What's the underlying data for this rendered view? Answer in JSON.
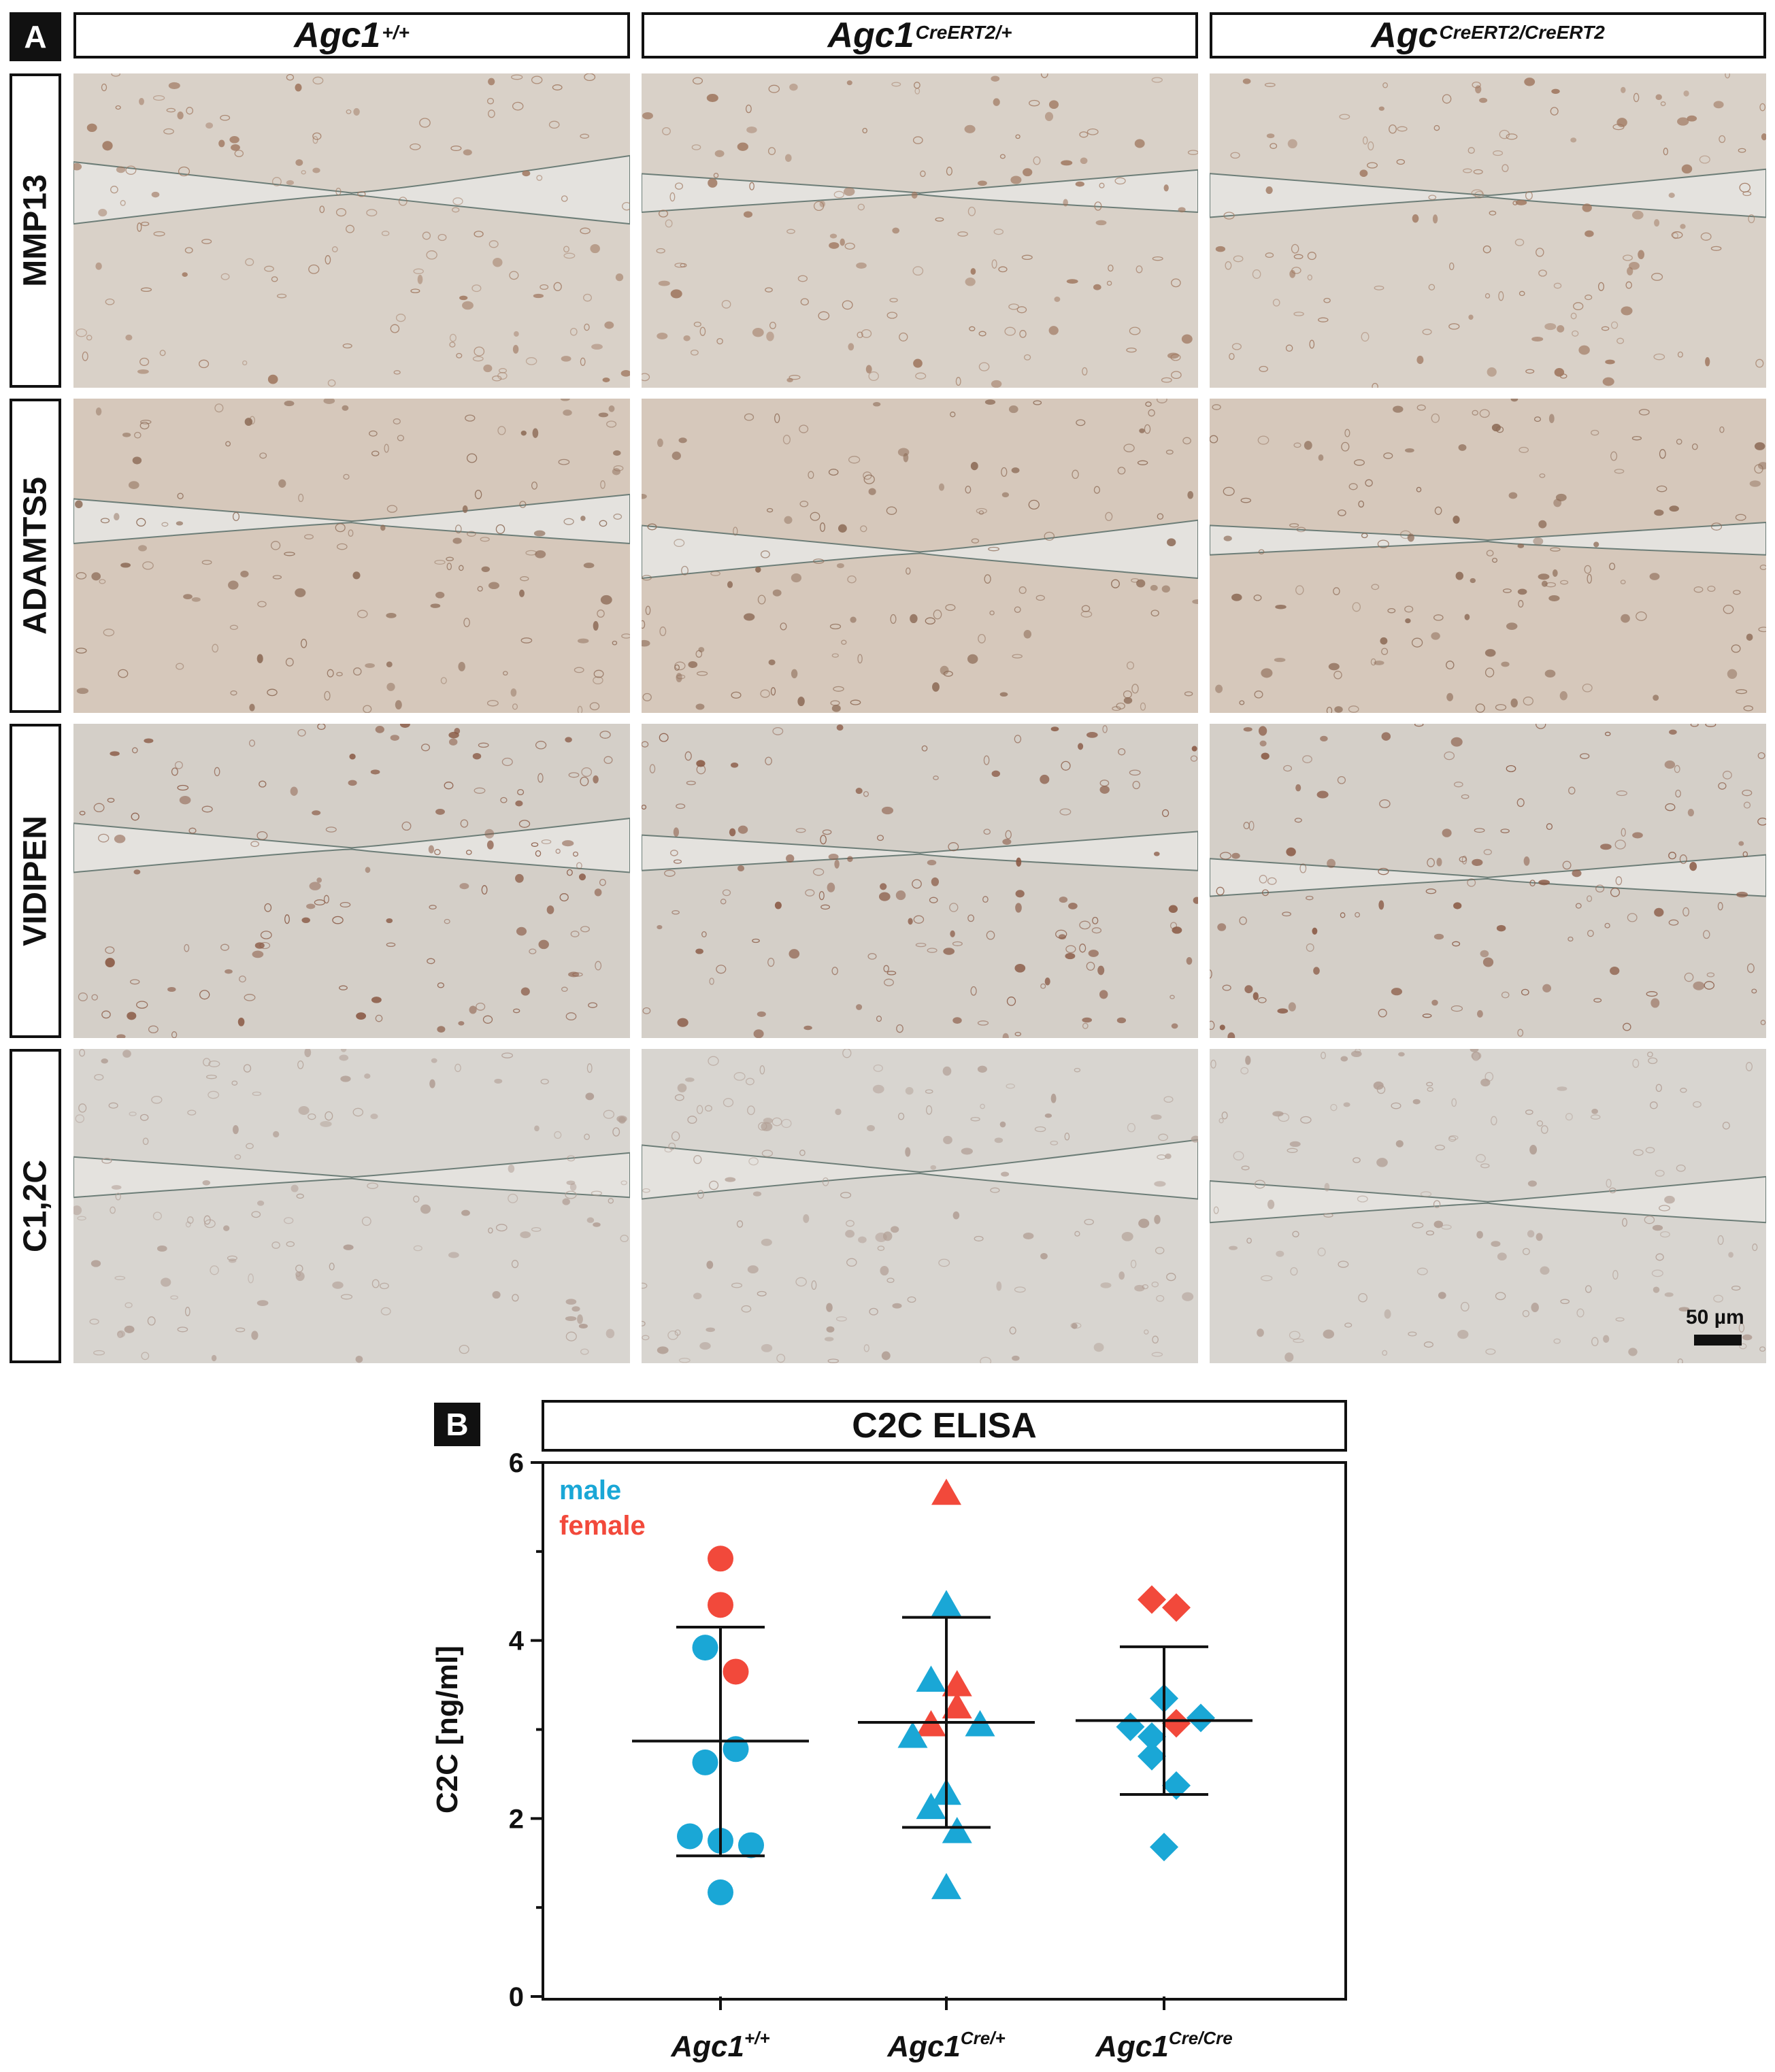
{
  "panel_a": {
    "letter": "A",
    "columns": [
      {
        "base": "Agc1",
        "sup": "+/+"
      },
      {
        "base": "Agc1",
        "sup": "CreERT2/+"
      },
      {
        "base": "Agc",
        "sup": "CreERT2/CreERT2"
      }
    ],
    "rows": [
      "MMP13",
      "ADAMTS5",
      "VIDIPEN",
      "C1,2C"
    ],
    "scale_bar": "50 µm"
  },
  "panel_b": {
    "letter": "B",
    "title": "C2C ELISA"
  },
  "colors": {
    "male": "#1aa7d6",
    "female": "#f2493b",
    "ink": "#111111"
  },
  "chart_data": {
    "type": "scatter",
    "title": "C2C ELISA",
    "xlabel": "",
    "ylabel": "C2C [ng/ml]",
    "ylim": [
      0,
      6
    ],
    "yticks": [
      0,
      2,
      4,
      6
    ],
    "grid": false,
    "legend": [
      "male",
      "female"
    ],
    "legend_position": "top-left",
    "categories": [
      {
        "base": "Agc1",
        "sup": "+/+"
      },
      {
        "base": "Agc1",
        "sup": "Cre/+"
      },
      {
        "base": "Agc1",
        "sup": "Cre/Cre"
      }
    ],
    "groups": [
      {
        "marker": "circle",
        "mean": 2.87,
        "sd_upper": 4.15,
        "sd_lower": 1.58,
        "points": [
          {
            "sex": "female",
            "y": 4.92,
            "jitter": 0
          },
          {
            "sex": "female",
            "y": 4.4,
            "jitter": 0
          },
          {
            "sex": "male",
            "y": 3.92,
            "jitter": -0.5
          },
          {
            "sex": "female",
            "y": 3.65,
            "jitter": 0.5
          },
          {
            "sex": "male",
            "y": 2.78,
            "jitter": 0.5
          },
          {
            "sex": "male",
            "y": 2.63,
            "jitter": -0.5
          },
          {
            "sex": "male",
            "y": 1.8,
            "jitter": -1
          },
          {
            "sex": "male",
            "y": 1.75,
            "jitter": 0
          },
          {
            "sex": "male",
            "y": 1.7,
            "jitter": 1
          },
          {
            "sex": "male",
            "y": 1.17,
            "jitter": 0
          }
        ]
      },
      {
        "marker": "triangle",
        "mean": 3.08,
        "sd_upper": 4.26,
        "sd_lower": 1.9,
        "points": [
          {
            "sex": "female",
            "y": 5.65,
            "jitter": 0
          },
          {
            "sex": "male",
            "y": 4.4,
            "jitter": 0
          },
          {
            "sex": "male",
            "y": 3.55,
            "jitter": -0.5
          },
          {
            "sex": "female",
            "y": 3.5,
            "jitter": 0.35
          },
          {
            "sex": "female",
            "y": 3.25,
            "jitter": 0.35
          },
          {
            "sex": "female",
            "y": 3.05,
            "jitter": -0.5
          },
          {
            "sex": "male",
            "y": 3.05,
            "jitter": 1.1
          },
          {
            "sex": "male",
            "y": 2.92,
            "jitter": -1.1
          },
          {
            "sex": "male",
            "y": 2.28,
            "jitter": 0
          },
          {
            "sex": "male",
            "y": 2.12,
            "jitter": -0.5
          },
          {
            "sex": "male",
            "y": 1.85,
            "jitter": 0.35
          },
          {
            "sex": "male",
            "y": 1.22,
            "jitter": 0
          }
        ]
      },
      {
        "marker": "diamond",
        "mean": 3.1,
        "sd_upper": 3.93,
        "sd_lower": 2.27,
        "points": [
          {
            "sex": "female",
            "y": 4.46,
            "jitter": -0.4
          },
          {
            "sex": "female",
            "y": 4.37,
            "jitter": 0.4
          },
          {
            "sex": "male",
            "y": 3.35,
            "jitter": 0
          },
          {
            "sex": "male",
            "y": 3.13,
            "jitter": 1.2
          },
          {
            "sex": "female",
            "y": 3.07,
            "jitter": 0.4
          },
          {
            "sex": "male",
            "y": 3.03,
            "jitter": -1.1
          },
          {
            "sex": "male",
            "y": 2.92,
            "jitter": -0.4
          },
          {
            "sex": "male",
            "y": 2.7,
            "jitter": -0.4
          },
          {
            "sex": "male",
            "y": 2.37,
            "jitter": 0.4
          },
          {
            "sex": "male",
            "y": 1.68,
            "jitter": 0
          }
        ]
      }
    ]
  }
}
